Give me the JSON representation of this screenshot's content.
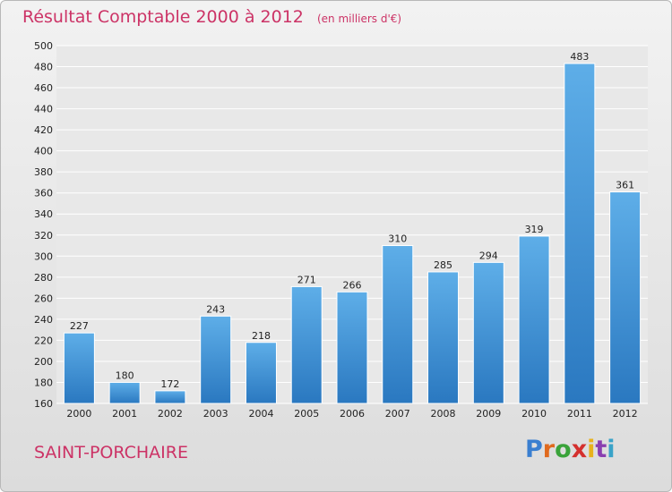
{
  "chart_data": {
    "type": "bar",
    "title": "Résultat Comptable 2000 à 2012",
    "subtitle": "(en milliers d'€)",
    "categories": [
      "2000",
      "2001",
      "2002",
      "2003",
      "2004",
      "2005",
      "2006",
      "2007",
      "2008",
      "2009",
      "2010",
      "2011",
      "2012"
    ],
    "values": [
      227,
      180,
      172,
      243,
      218,
      271,
      266,
      310,
      285,
      294,
      319,
      483,
      361
    ],
    "ylim": [
      160,
      500
    ],
    "yticks": [
      160,
      180,
      200,
      220,
      240,
      260,
      280,
      300,
      320,
      340,
      360,
      380,
      400,
      420,
      440,
      460,
      480,
      500
    ],
    "grid": true,
    "bar_color": "#3d8fd6"
  },
  "footer": {
    "commune": "SAINT-PORCHAIRE",
    "brand_letters": [
      "P",
      "r",
      "o",
      "x",
      "i",
      "t",
      "i"
    ],
    "brand_colors": [
      "#3a7fd0",
      "#e06a1e",
      "#3aa33a",
      "#d4302e",
      "#e8b21c",
      "#8a3fb0",
      "#3aa3c8"
    ]
  }
}
